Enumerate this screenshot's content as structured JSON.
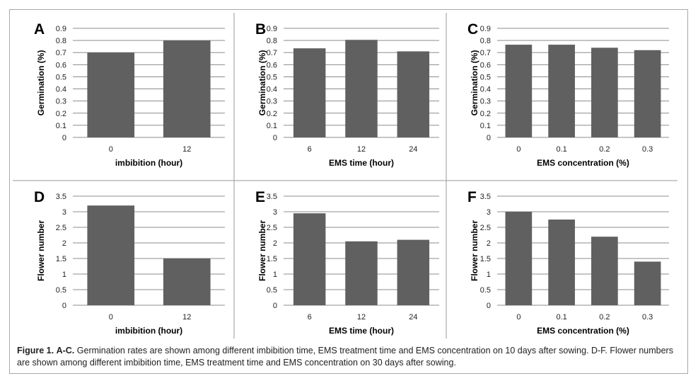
{
  "figure": {
    "caption_label": "Figure 1.",
    "caption_panels": "A-C.",
    "caption_text": "Germination rates are shown among different imbibition time, EMS treatment time and EMS concentration on 10 days after sowing. D-F. Flower numbers are shown among different imbibition time, EMS treatment time and EMS concentration on 30 days after sowing."
  },
  "colors": {
    "bar": "#606060",
    "gridline": "#8c8c8c",
    "divider": "#9a9a9a"
  },
  "chart_data": [
    {
      "panel": "A",
      "type": "bar",
      "categories": [
        "0",
        "12"
      ],
      "values": [
        0.7,
        0.8
      ],
      "xlabel": "imbibition (hour)",
      "ylabel": "Germination (%)",
      "ylim": [
        0,
        0.9
      ],
      "yticks": [
        "0",
        "0.1",
        "0.2",
        "0.3",
        "0.4",
        "0.5",
        "0.6",
        "0.7",
        "0.8",
        "0.9"
      ],
      "grid": "horizontal"
    },
    {
      "panel": "B",
      "type": "bar",
      "categories": [
        "6",
        "12",
        "24"
      ],
      "values": [
        0.735,
        0.805,
        0.71
      ],
      "xlabel": "EMS time (hour)",
      "ylabel": "Germination (%)",
      "ylim": [
        0,
        0.9
      ],
      "yticks": [
        "0",
        "0.1",
        "0.2",
        "0.3",
        "0.4",
        "0.5",
        "0.6",
        "0.7",
        "0.8",
        "0.9"
      ],
      "grid": "horizontal"
    },
    {
      "panel": "C",
      "type": "bar",
      "categories": [
        "0",
        "0.1",
        "0.2",
        "0.3"
      ],
      "values": [
        0.765,
        0.765,
        0.74,
        0.72
      ],
      "xlabel": "EMS concentration (%)",
      "ylabel": "Germination (%)",
      "ylim": [
        0,
        0.9
      ],
      "yticks": [
        "0",
        "0.1",
        "0.2",
        "0.3",
        "0.4",
        "0.5",
        "0.6",
        "0.7",
        "0.8",
        "0.9"
      ],
      "grid": "horizontal"
    },
    {
      "panel": "D",
      "type": "bar",
      "categories": [
        "0",
        "12"
      ],
      "values": [
        3.2,
        1.5
      ],
      "xlabel": "imbibition (hour)",
      "ylabel": "Flower number",
      "ylim": [
        0,
        3.5
      ],
      "yticks": [
        "0",
        "0.5",
        "1",
        "1.5",
        "2",
        "2.5",
        "3",
        "3.5"
      ],
      "grid": "horizontal"
    },
    {
      "panel": "E",
      "type": "bar",
      "categories": [
        "6",
        "12",
        "24"
      ],
      "values": [
        2.95,
        2.05,
        2.1
      ],
      "xlabel": "EMS time (hour)",
      "ylabel": "Flower number",
      "ylim": [
        0,
        3.5
      ],
      "yticks": [
        "0",
        "0.5",
        "1",
        "1.5",
        "2",
        "2.5",
        "3",
        "3.5"
      ],
      "grid": "horizontal"
    },
    {
      "panel": "F",
      "type": "bar",
      "categories": [
        "0",
        "0.1",
        "0.2",
        "0.3"
      ],
      "values": [
        3.0,
        2.75,
        2.2,
        1.4
      ],
      "xlabel": "EMS concentration (%)",
      "ylabel": "Flower number",
      "ylim": [
        0,
        3.5
      ],
      "yticks": [
        "0",
        "0.5",
        "1",
        "1.5",
        "2",
        "2.5",
        "3",
        "3.5"
      ],
      "grid": "horizontal"
    }
  ]
}
